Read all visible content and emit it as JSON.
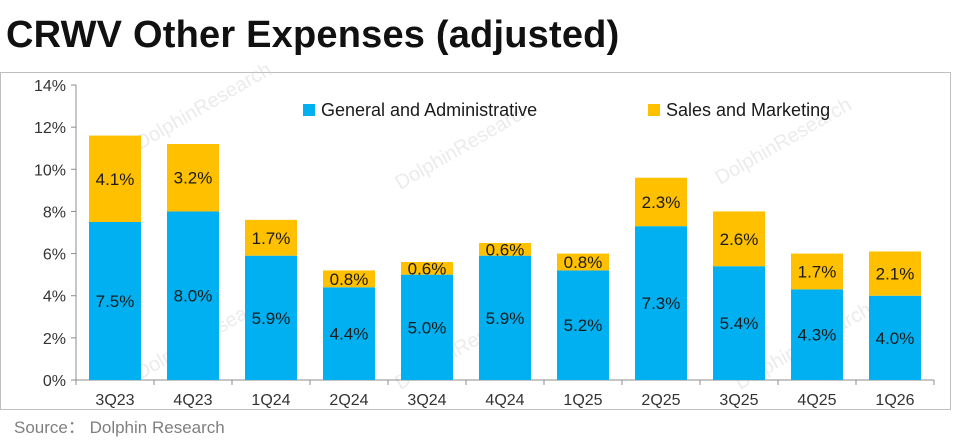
{
  "title": "CRWV Other Expenses (adjusted)",
  "source": "Source： Dolphin Research",
  "watermark": "DolphinResearch",
  "chart_data": {
    "type": "bar",
    "stacked": true,
    "categories": [
      "3Q23",
      "4Q23",
      "1Q24",
      "2Q24",
      "3Q24",
      "4Q24",
      "1Q25",
      "2Q25",
      "3Q25",
      "4Q25",
      "1Q26"
    ],
    "series": [
      {
        "name": "General and Administrative",
        "color": "#00b0f0",
        "values": [
          7.5,
          8.0,
          5.9,
          4.4,
          5.0,
          5.9,
          5.2,
          7.3,
          5.4,
          4.3,
          4.0
        ],
        "labels": [
          "7.5%",
          "8.0%",
          "5.9%",
          "4.4%",
          "5.0%",
          "5.9%",
          "5.2%",
          "7.3%",
          "5.4%",
          "4.3%",
          "4.0%"
        ]
      },
      {
        "name": "Sales and Marketing",
        "color": "#ffc000",
        "values": [
          4.1,
          3.2,
          1.7,
          0.8,
          0.6,
          0.6,
          0.8,
          2.3,
          2.6,
          1.7,
          2.1
        ],
        "labels": [
          "4.1%",
          "3.2%",
          "1.7%",
          "0.8%",
          "0.6%",
          "0.6%",
          "0.8%",
          "2.3%",
          "2.6%",
          "1.7%",
          "2.1%"
        ]
      }
    ],
    "ylim": [
      0,
      14
    ],
    "yticks": [
      0,
      2,
      4,
      6,
      8,
      10,
      12,
      14
    ],
    "ytick_labels": [
      "0%",
      "2%",
      "4%",
      "6%",
      "8%",
      "10%",
      "12%",
      "14%"
    ],
    "legend_position": "top-center",
    "grid": false
  }
}
